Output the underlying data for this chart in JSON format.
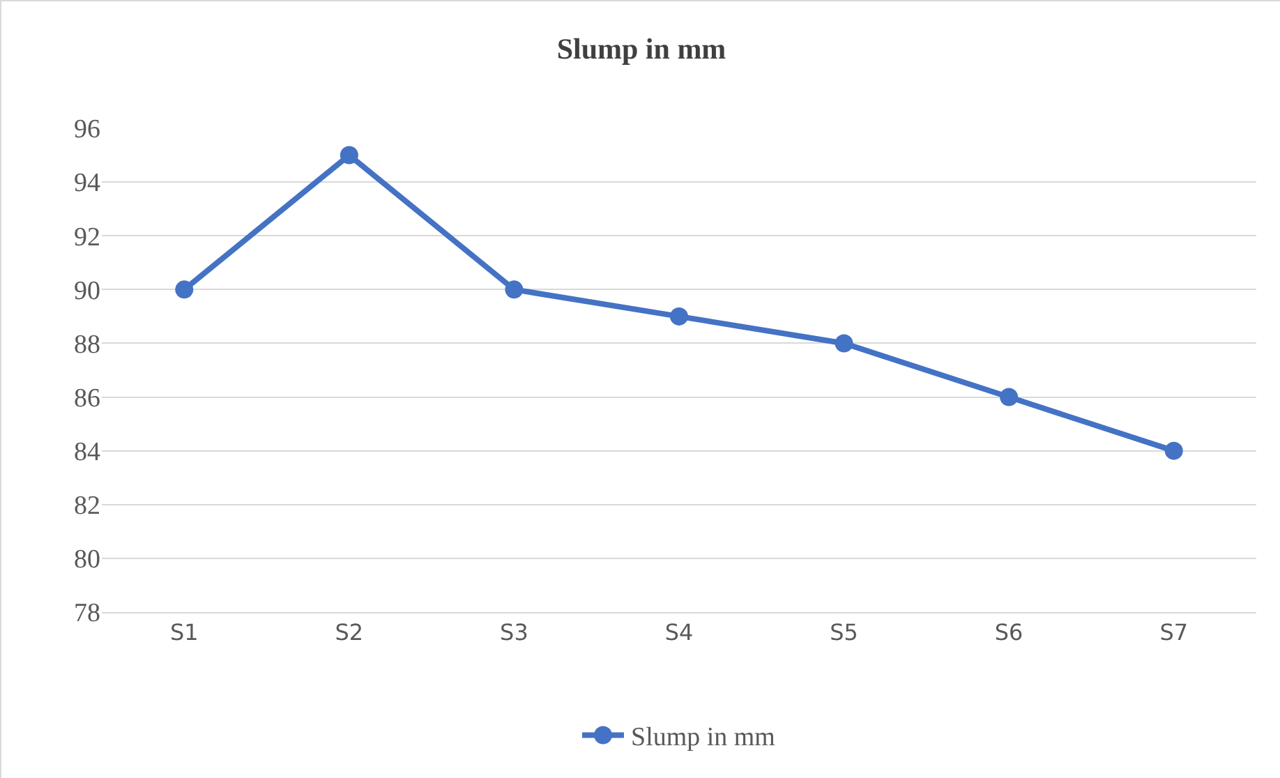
{
  "chart_data": {
    "type": "line",
    "title": "Slump in mm",
    "categories": [
      "S1",
      "S2",
      "S3",
      "S4",
      "S5",
      "S6",
      "S7"
    ],
    "series": [
      {
        "name": "Slump in mm",
        "color": "#4472c4",
        "values": [
          90,
          95,
          90,
          89,
          88,
          86,
          84
        ]
      }
    ],
    "ylim": [
      78,
      96
    ],
    "yticks": [
      78,
      80,
      82,
      84,
      86,
      88,
      90,
      92,
      94,
      96
    ],
    "grid": "y",
    "legend": "bottom",
    "marker": "circle",
    "line_style": "solid"
  }
}
